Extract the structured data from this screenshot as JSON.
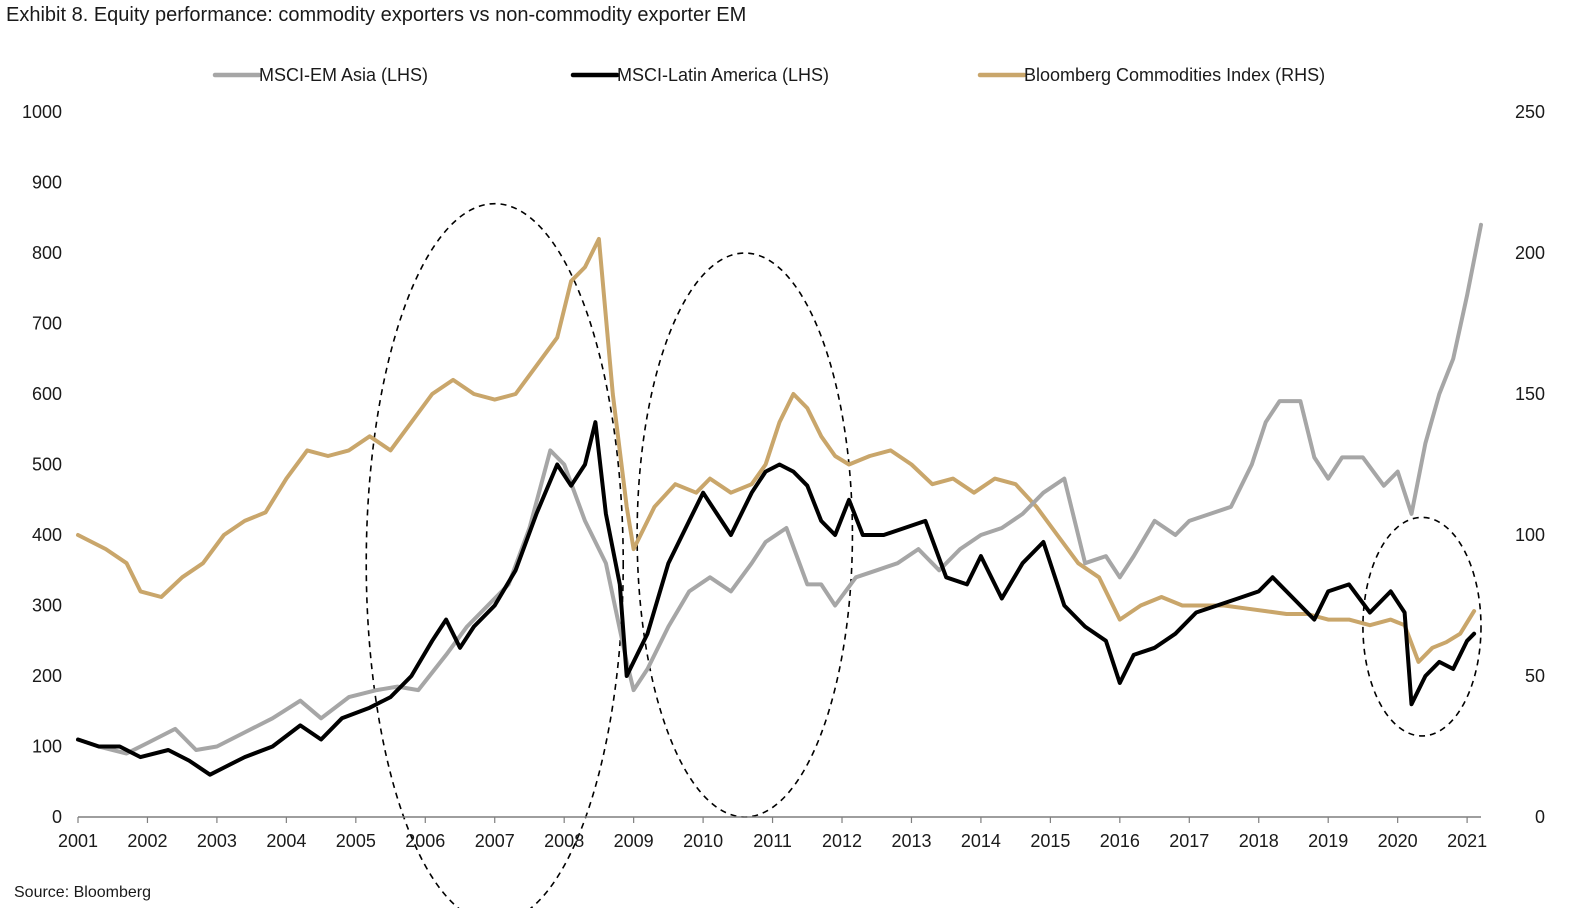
{
  "title": "Exhibit 8. Equity performance: commodity exporters vs non-commodity exporter EM",
  "source": "Source: Bloomberg",
  "chart_data": {
    "type": "line",
    "title": "Exhibit 8. Equity performance: commodity exporters vs non-commodity exporter EM",
    "xlabel": "",
    "ylabel_left": "",
    "ylabel_right": "",
    "xlim": [
      2001,
      2021.2
    ],
    "ylim_left": [
      0,
      1000
    ],
    "ylim_right": [
      0,
      250
    ],
    "x_ticks": [
      "2001",
      "2002",
      "2003",
      "2004",
      "2005",
      "2006",
      "2007",
      "2008",
      "2009",
      "2010",
      "2011",
      "2012",
      "2013",
      "2014",
      "2015",
      "2016",
      "2017",
      "2018",
      "2019",
      "2020",
      "2021"
    ],
    "y_ticks_left": [
      "0",
      "100",
      "200",
      "300",
      "400",
      "500",
      "600",
      "700",
      "800",
      "900",
      "1000"
    ],
    "y_ticks_right": [
      "0",
      "50",
      "100",
      "150",
      "200",
      "250"
    ],
    "legend_position": "top",
    "grid": false,
    "series": [
      {
        "name": "MSCI-EM Asia (LHS)",
        "axis": "left",
        "color": "#a6a6a6",
        "x": [
          2001.0,
          2001.3,
          2001.7,
          2002.0,
          2002.4,
          2002.7,
          2003.0,
          2003.4,
          2003.8,
          2004.2,
          2004.5,
          2004.9,
          2005.3,
          2005.6,
          2005.9,
          2006.3,
          2006.6,
          2006.9,
          2007.2,
          2007.5,
          2007.8,
          2008.0,
          2008.3,
          2008.6,
          2008.9,
          2009.0,
          2009.2,
          2009.5,
          2009.8,
          2010.1,
          2010.4,
          2010.7,
          2010.9,
          2011.2,
          2011.5,
          2011.7,
          2011.9,
          2012.2,
          2012.5,
          2012.8,
          2013.1,
          2013.4,
          2013.7,
          2014.0,
          2014.3,
          2014.6,
          2014.9,
          2015.2,
          2015.5,
          2015.8,
          2016.0,
          2016.2,
          2016.5,
          2016.8,
          2017.0,
          2017.3,
          2017.6,
          2017.9,
          2018.1,
          2018.3,
          2018.6,
          2018.8,
          2019.0,
          2019.2,
          2019.5,
          2019.8,
          2020.0,
          2020.2,
          2020.4,
          2020.6,
          2020.8,
          2021.0,
          2021.2
        ],
        "values": [
          110,
          100,
          90,
          105,
          125,
          95,
          100,
          120,
          140,
          165,
          140,
          170,
          180,
          185,
          180,
          230,
          270,
          300,
          330,
          410,
          520,
          500,
          420,
          360,
          220,
          180,
          210,
          270,
          320,
          340,
          320,
          360,
          390,
          410,
          330,
          330,
          300,
          340,
          350,
          360,
          380,
          350,
          380,
          400,
          410,
          430,
          460,
          480,
          360,
          370,
          340,
          370,
          420,
          400,
          420,
          430,
          440,
          500,
          560,
          590,
          590,
          510,
          480,
          510,
          510,
          470,
          490,
          430,
          530,
          600,
          650,
          740,
          840
        ]
      },
      {
        "name": "MSCI-Latin America (LHS)",
        "axis": "left",
        "color": "#000000",
        "x": [
          2001.0,
          2001.3,
          2001.6,
          2001.9,
          2002.3,
          2002.6,
          2002.9,
          2003.1,
          2003.4,
          2003.8,
          2004.2,
          2004.5,
          2004.8,
          2005.2,
          2005.5,
          2005.8,
          2006.1,
          2006.3,
          2006.5,
          2006.7,
          2007.0,
          2007.3,
          2007.6,
          2007.9,
          2008.1,
          2008.3,
          2008.45,
          2008.6,
          2008.8,
          2008.9,
          2009.0,
          2009.2,
          2009.5,
          2009.8,
          2010.0,
          2010.2,
          2010.4,
          2010.7,
          2010.9,
          2011.1,
          2011.3,
          2011.5,
          2011.7,
          2011.9,
          2012.1,
          2012.3,
          2012.6,
          2012.9,
          2013.2,
          2013.5,
          2013.8,
          2014.0,
          2014.3,
          2014.6,
          2014.9,
          2015.2,
          2015.5,
          2015.8,
          2016.0,
          2016.2,
          2016.5,
          2016.8,
          2017.1,
          2017.4,
          2017.7,
          2018.0,
          2018.2,
          2018.5,
          2018.8,
          2019.0,
          2019.3,
          2019.6,
          2019.9,
          2020.1,
          2020.2,
          2020.4,
          2020.6,
          2020.8,
          2021.0,
          2021.1
        ],
        "values": [
          110,
          100,
          100,
          85,
          95,
          80,
          60,
          70,
          85,
          100,
          130,
          110,
          140,
          155,
          170,
          200,
          250,
          280,
          240,
          270,
          300,
          350,
          430,
          500,
          470,
          500,
          560,
          430,
          330,
          200,
          220,
          260,
          360,
          420,
          460,
          430,
          400,
          460,
          490,
          500,
          490,
          470,
          420,
          400,
          450,
          400,
          400,
          410,
          420,
          340,
          330,
          370,
          310,
          360,
          390,
          300,
          270,
          250,
          190,
          230,
          240,
          260,
          290,
          300,
          310,
          320,
          340,
          310,
          280,
          320,
          330,
          290,
          320,
          290,
          160,
          200,
          220,
          210,
          250,
          260
        ]
      },
      {
        "name": "Bloomberg Commodities Index (RHS)",
        "axis": "right",
        "color": "#c9a66b",
        "x": [
          2001.0,
          2001.4,
          2001.7,
          2001.9,
          2002.2,
          2002.5,
          2002.8,
          2003.1,
          2003.4,
          2003.7,
          2004.0,
          2004.3,
          2004.6,
          2004.9,
          2005.2,
          2005.5,
          2005.8,
          2006.1,
          2006.4,
          2006.7,
          2007.0,
          2007.3,
          2007.6,
          2007.9,
          2008.1,
          2008.3,
          2008.5,
          2008.7,
          2008.9,
          2009.0,
          2009.3,
          2009.6,
          2009.9,
          2010.1,
          2010.4,
          2010.7,
          2010.9,
          2011.1,
          2011.3,
          2011.5,
          2011.7,
          2011.9,
          2012.1,
          2012.4,
          2012.7,
          2013.0,
          2013.3,
          2013.6,
          2013.9,
          2014.2,
          2014.5,
          2014.8,
          2015.1,
          2015.4,
          2015.7,
          2016.0,
          2016.3,
          2016.6,
          2016.9,
          2017.2,
          2017.5,
          2017.8,
          2018.1,
          2018.4,
          2018.7,
          2019.0,
          2019.3,
          2019.6,
          2019.9,
          2020.1,
          2020.3,
          2020.5,
          2020.7,
          2020.9,
          2021.1
        ],
        "values": [
          100,
          95,
          90,
          80,
          78,
          85,
          90,
          100,
          105,
          108,
          120,
          130,
          128,
          130,
          135,
          130,
          140,
          150,
          155,
          150,
          148,
          150,
          160,
          170,
          190,
          195,
          205,
          150,
          110,
          95,
          110,
          118,
          115,
          120,
          115,
          118,
          125,
          140,
          150,
          145,
          135,
          128,
          125,
          128,
          130,
          125,
          118,
          120,
          115,
          120,
          118,
          110,
          100,
          90,
          85,
          70,
          75,
          78,
          75,
          75,
          75,
          74,
          73,
          72,
          72,
          70,
          70,
          68,
          70,
          68,
          55,
          60,
          62,
          65,
          73
        ]
      }
    ],
    "annotations": [
      {
        "shape": "dashed-ellipse",
        "x_center": 2007.0,
        "y_center_left": 360,
        "x_radius": 1.85,
        "y_radius_left": 510
      },
      {
        "shape": "dashed-ellipse",
        "x_center": 2010.6,
        "y_center_left": 400,
        "x_radius": 1.55,
        "y_radius_left": 400
      },
      {
        "shape": "dashed-ellipse",
        "x_center": 2020.35,
        "y_center_left": 270,
        "x_radius": 0.85,
        "y_radius_left": 155
      }
    ]
  }
}
